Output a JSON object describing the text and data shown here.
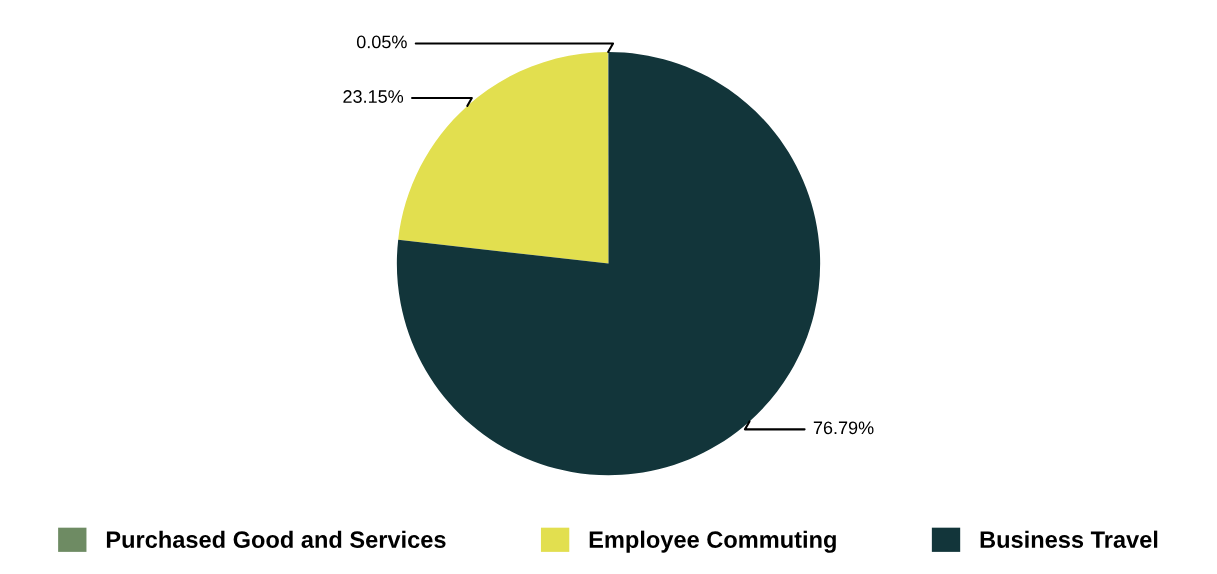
{
  "chart_data": {
    "type": "pie",
    "categories": [
      "Purchased Good and Services",
      "Employee Commuting",
      "Business Travel"
    ],
    "values": [
      0.05,
      23.15,
      76.79
    ],
    "colors": [
      "#6e8b63",
      "#e2df4f",
      "#12353a"
    ],
    "value_labels": [
      "0.05%",
      "23.15%",
      "76.79%"
    ],
    "legend": "bottom"
  }
}
